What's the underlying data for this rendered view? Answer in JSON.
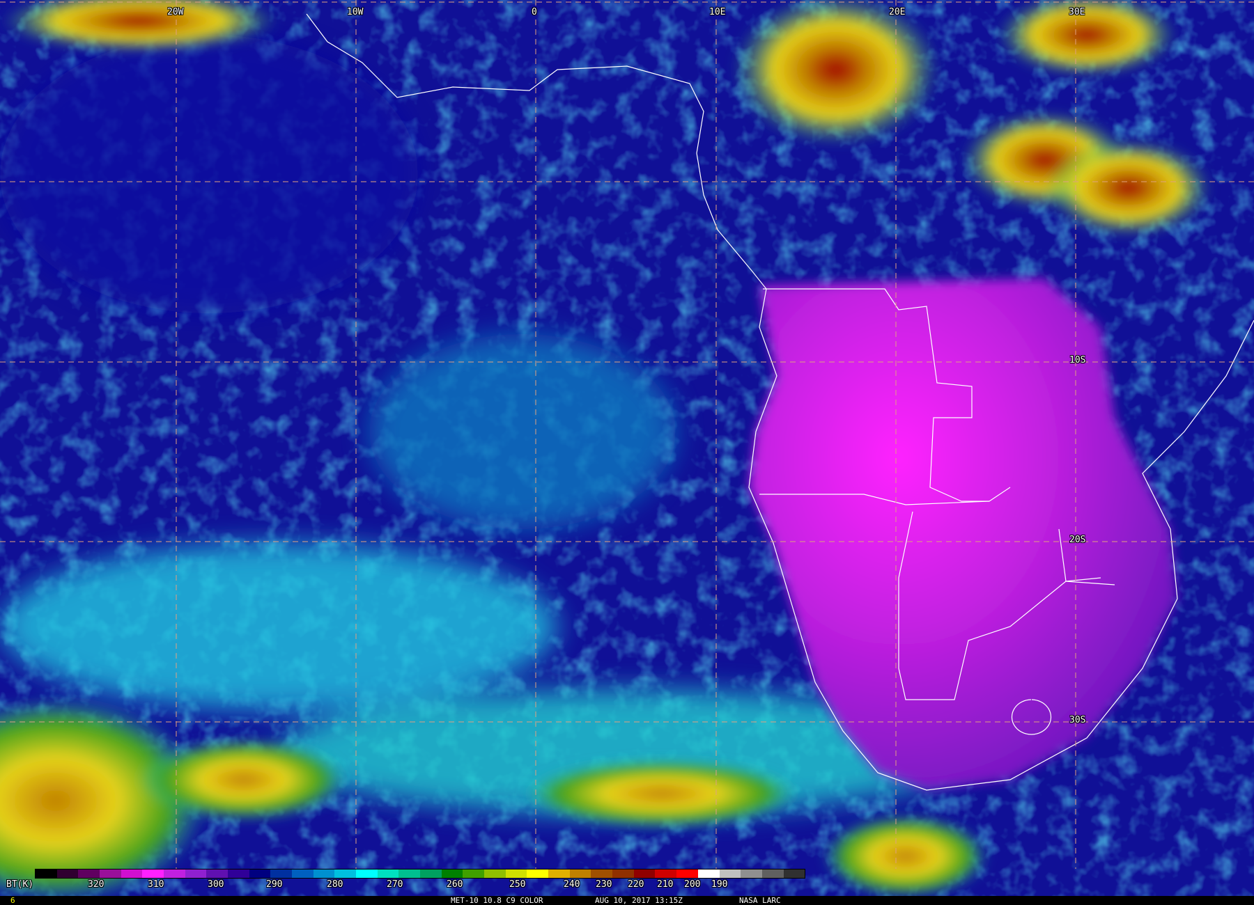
{
  "map": {
    "longitude_labels": [
      "20W",
      "10W",
      "0",
      "10E",
      "20E",
      "30E"
    ],
    "latitude_labels": [
      "10S",
      "20S",
      "30S"
    ],
    "colors": {
      "ocean_clear": "#1a1a9c",
      "low_cloud": "#1ea7d6",
      "high_cloud": "#e6d21a",
      "land_hot": "#e020e0",
      "land_warm": "#8a20c8",
      "boundaries": "#ffffff",
      "grid": "#e0a080"
    }
  },
  "colorbar": {
    "unit_label": "BT(K)",
    "ticks": [
      "320",
      "310",
      "300",
      "290",
      "280",
      "270",
      "260",
      "250",
      "240",
      "230",
      "220",
      "210",
      "200",
      "190"
    ],
    "colors": [
      "#000000",
      "#300030",
      "#600060",
      "#9a109a",
      "#d010d0",
      "#ff20ff",
      "#c020e0",
      "#9020d0",
      "#6010b0",
      "#300098",
      "#000080",
      "#0030a0",
      "#0060c0",
      "#0090d0",
      "#00c0e0",
      "#00ffff",
      "#00e0c0",
      "#00c090",
      "#00a060",
      "#008000",
      "#40a000",
      "#90c000",
      "#d0e000",
      "#ffff00",
      "#e0b000",
      "#c08000",
      "#a05000",
      "#903000",
      "#900000",
      "#d00000",
      "#ff0000",
      "#ffffff",
      "#c0c0c0",
      "#909090",
      "#606060",
      "#303030"
    ]
  },
  "footer": {
    "frame": "6",
    "product": "MET-10 10.8 C9 COLOR",
    "datetime": "AUG 10, 2017 13:15Z",
    "credit": "NASA LARC"
  }
}
